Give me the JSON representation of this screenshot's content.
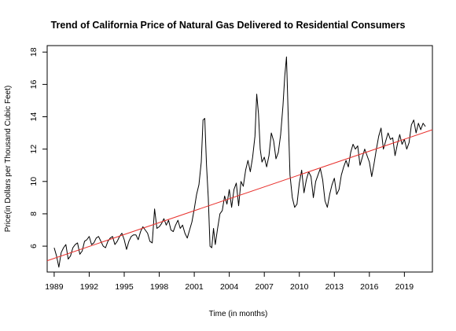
{
  "chart_data": {
    "type": "line",
    "title": "Trend of California Price of Natural Gas Delivered to Residential Consumers",
    "xlabel": "Time (in months)",
    "ylabel": "Price(in Dollars per Thousand Cubic Feet)",
    "xlim": [
      1988.4,
      2021.4
    ],
    "ylim": [
      4.4,
      18.4
    ],
    "x_ticks": [
      1989,
      1992,
      1995,
      1998,
      2001,
      2004,
      2007,
      2010,
      2013,
      2016,
      2019
    ],
    "y_ticks": [
      6,
      8,
      10,
      12,
      14,
      16,
      18
    ],
    "grid": false,
    "legend": "none",
    "series": [
      {
        "color": "#000000",
        "points": [
          [
            1989.0,
            5.9
          ],
          [
            1989.2,
            5.4
          ],
          [
            1989.4,
            4.7
          ],
          [
            1989.6,
            5.6
          ],
          [
            1989.8,
            5.9
          ],
          [
            1990.0,
            6.1
          ],
          [
            1990.2,
            5.2
          ],
          [
            1990.4,
            5.4
          ],
          [
            1990.6,
            5.9
          ],
          [
            1990.8,
            6.1
          ],
          [
            1991.0,
            6.2
          ],
          [
            1991.2,
            5.5
          ],
          [
            1991.4,
            5.7
          ],
          [
            1991.6,
            6.3
          ],
          [
            1991.8,
            6.4
          ],
          [
            1992.0,
            6.6
          ],
          [
            1992.2,
            6.1
          ],
          [
            1992.4,
            6.2
          ],
          [
            1992.6,
            6.5
          ],
          [
            1992.8,
            6.6
          ],
          [
            1993.0,
            6.3
          ],
          [
            1993.2,
            6.0
          ],
          [
            1993.4,
            5.9
          ],
          [
            1993.6,
            6.3
          ],
          [
            1993.8,
            6.5
          ],
          [
            1994.0,
            6.6
          ],
          [
            1994.2,
            6.1
          ],
          [
            1994.4,
            6.3
          ],
          [
            1994.6,
            6.6
          ],
          [
            1994.8,
            6.8
          ],
          [
            1995.0,
            6.4
          ],
          [
            1995.2,
            5.8
          ],
          [
            1995.4,
            6.3
          ],
          [
            1995.6,
            6.6
          ],
          [
            1995.8,
            6.7
          ],
          [
            1996.0,
            6.7
          ],
          [
            1996.2,
            6.4
          ],
          [
            1996.4,
            6.9
          ],
          [
            1996.6,
            7.2
          ],
          [
            1996.8,
            7.0
          ],
          [
            1997.0,
            6.8
          ],
          [
            1997.2,
            6.3
          ],
          [
            1997.4,
            6.2
          ],
          [
            1997.6,
            8.3
          ],
          [
            1997.8,
            7.1
          ],
          [
            1998.0,
            7.2
          ],
          [
            1998.2,
            7.4
          ],
          [
            1998.4,
            7.7
          ],
          [
            1998.6,
            7.3
          ],
          [
            1998.8,
            7.6
          ],
          [
            1999.0,
            7.0
          ],
          [
            1999.2,
            6.9
          ],
          [
            1999.4,
            7.3
          ],
          [
            1999.6,
            7.6
          ],
          [
            1999.8,
            7.1
          ],
          [
            2000.0,
            7.3
          ],
          [
            2000.2,
            6.8
          ],
          [
            2000.4,
            6.5
          ],
          [
            2000.6,
            7.0
          ],
          [
            2000.8,
            7.5
          ],
          [
            2001.0,
            8.3
          ],
          [
            2001.2,
            9.2
          ],
          [
            2001.4,
            9.8
          ],
          [
            2001.6,
            11.2
          ],
          [
            2001.75,
            13.8
          ],
          [
            2001.9,
            13.9
          ],
          [
            2002.05,
            11.0
          ],
          [
            2002.2,
            9.0
          ],
          [
            2002.35,
            6.0
          ],
          [
            2002.5,
            5.9
          ],
          [
            2002.65,
            7.1
          ],
          [
            2002.8,
            6.1
          ],
          [
            2003.0,
            7.1
          ],
          [
            2003.2,
            8.0
          ],
          [
            2003.4,
            8.2
          ],
          [
            2003.6,
            9.1
          ],
          [
            2003.8,
            8.6
          ],
          [
            2004.0,
            9.5
          ],
          [
            2004.2,
            8.4
          ],
          [
            2004.4,
            9.5
          ],
          [
            2004.6,
            9.9
          ],
          [
            2004.8,
            8.5
          ],
          [
            2005.0,
            10.0
          ],
          [
            2005.2,
            9.7
          ],
          [
            2005.4,
            10.7
          ],
          [
            2005.6,
            11.3
          ],
          [
            2005.8,
            10.6
          ],
          [
            2006.0,
            11.5
          ],
          [
            2006.2,
            12.8
          ],
          [
            2006.35,
            15.4
          ],
          [
            2006.5,
            14.2
          ],
          [
            2006.65,
            12.0
          ],
          [
            2006.8,
            11.2
          ],
          [
            2007.0,
            11.5
          ],
          [
            2007.2,
            10.9
          ],
          [
            2007.4,
            11.6
          ],
          [
            2007.6,
            13.0
          ],
          [
            2007.8,
            12.5
          ],
          [
            2008.0,
            11.4
          ],
          [
            2008.2,
            11.8
          ],
          [
            2008.4,
            12.9
          ],
          [
            2008.6,
            14.7
          ],
          [
            2008.75,
            16.5
          ],
          [
            2008.9,
            17.7
          ],
          [
            2009.05,
            14.0
          ],
          [
            2009.2,
            10.4
          ],
          [
            2009.4,
            9.0
          ],
          [
            2009.6,
            8.4
          ],
          [
            2009.8,
            8.6
          ],
          [
            2010.0,
            9.9
          ],
          [
            2010.2,
            10.7
          ],
          [
            2010.4,
            9.3
          ],
          [
            2010.6,
            10.1
          ],
          [
            2010.8,
            10.6
          ],
          [
            2011.0,
            10.3
          ],
          [
            2011.2,
            9.0
          ],
          [
            2011.4,
            10.0
          ],
          [
            2011.6,
            10.4
          ],
          [
            2011.8,
            10.8
          ],
          [
            2012.0,
            10.1
          ],
          [
            2012.2,
            8.8
          ],
          [
            2012.4,
            8.4
          ],
          [
            2012.6,
            9.2
          ],
          [
            2012.8,
            9.8
          ],
          [
            2013.0,
            10.2
          ],
          [
            2013.2,
            9.2
          ],
          [
            2013.4,
            9.5
          ],
          [
            2013.6,
            10.4
          ],
          [
            2013.8,
            10.9
          ],
          [
            2014.0,
            11.3
          ],
          [
            2014.2,
            10.9
          ],
          [
            2014.4,
            11.8
          ],
          [
            2014.6,
            12.3
          ],
          [
            2014.8,
            12.0
          ],
          [
            2015.0,
            12.2
          ],
          [
            2015.2,
            11.0
          ],
          [
            2015.4,
            11.5
          ],
          [
            2015.6,
            12.0
          ],
          [
            2015.8,
            11.6
          ],
          [
            2016.0,
            11.2
          ],
          [
            2016.2,
            10.3
          ],
          [
            2016.4,
            11.1
          ],
          [
            2016.6,
            12.0
          ],
          [
            2016.8,
            12.8
          ],
          [
            2017.0,
            13.3
          ],
          [
            2017.2,
            12.0
          ],
          [
            2017.4,
            12.5
          ],
          [
            2017.6,
            13.0
          ],
          [
            2017.8,
            12.6
          ],
          [
            2018.0,
            12.7
          ],
          [
            2018.2,
            11.6
          ],
          [
            2018.4,
            12.3
          ],
          [
            2018.6,
            12.9
          ],
          [
            2018.8,
            12.3
          ],
          [
            2019.0,
            12.6
          ],
          [
            2019.2,
            12.0
          ],
          [
            2019.4,
            12.4
          ],
          [
            2019.6,
            13.5
          ],
          [
            2019.8,
            13.8
          ],
          [
            2020.0,
            13.0
          ],
          [
            2020.2,
            13.6
          ],
          [
            2020.4,
            13.2
          ],
          [
            2020.6,
            13.6
          ],
          [
            2020.8,
            13.4
          ]
        ]
      },
      {
        "color": "#e8302c",
        "points": [
          [
            1988.4,
            5.1
          ],
          [
            2021.4,
            13.2
          ]
        ]
      }
    ]
  }
}
